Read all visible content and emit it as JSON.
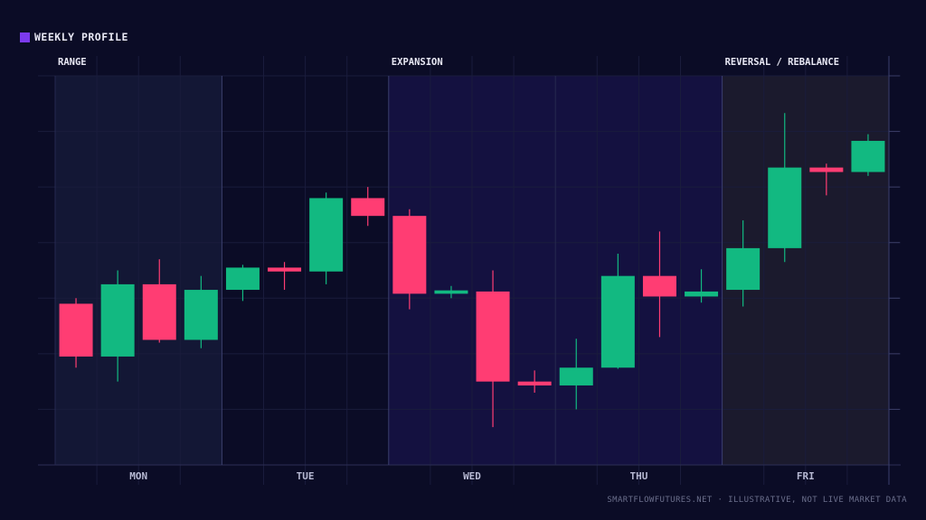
{
  "legend": {
    "label": "WEEKLY PROFILE",
    "color": "#7c3aed"
  },
  "footer": "SMARTFLOWFUTURES.NET · ILLUSTRATIVE, NOT LIVE MARKET DATA",
  "colors": {
    "background": "#0b0c26",
    "up": "#12b981",
    "down": "#ff3d73",
    "grid": "#1a1c3c",
    "range_shade": "#131735",
    "expansion_shade": "#141140",
    "reversal_shade": "#1b1a2d",
    "phase_label": "#e8e8f4",
    "day_label": "#b6b8d2"
  },
  "chart_data": {
    "type": "candlestick",
    "title": "",
    "xlabel": "",
    "ylabel": "",
    "ylim": [
      0,
      7
    ],
    "grid": true,
    "categories": [
      "MON",
      "TUE",
      "WED",
      "THU",
      "FRI"
    ],
    "phases": [
      {
        "label": "RANGE",
        "start": "MON",
        "end": "MON"
      },
      {
        "label": "EXPANSION",
        "start": "WED",
        "end": "THU"
      },
      {
        "label": "REVERSAL / REBALANCE",
        "start": "FRI",
        "end": "FRI"
      }
    ],
    "candles": [
      {
        "day": "MON",
        "open": 2.9,
        "high": 3.0,
        "low": 1.75,
        "close": 1.95
      },
      {
        "day": "MON",
        "open": 1.95,
        "high": 3.5,
        "low": 1.5,
        "close": 3.25
      },
      {
        "day": "MON",
        "open": 3.25,
        "high": 3.7,
        "low": 2.2,
        "close": 2.25
      },
      {
        "day": "MON",
        "open": 2.25,
        "high": 3.4,
        "low": 2.1,
        "close": 3.15
      },
      {
        "day": "TUE",
        "open": 3.15,
        "high": 3.6,
        "low": 2.95,
        "close": 3.55
      },
      {
        "day": "TUE",
        "open": 3.55,
        "high": 3.65,
        "low": 3.15,
        "close": 3.48
      },
      {
        "day": "TUE",
        "open": 3.48,
        "high": 4.9,
        "low": 3.25,
        "close": 4.8
      },
      {
        "day": "TUE",
        "open": 4.8,
        "high": 5.0,
        "low": 4.3,
        "close": 4.48
      },
      {
        "day": "WED",
        "open": 4.48,
        "high": 4.6,
        "low": 2.8,
        "close": 3.08
      },
      {
        "day": "WED",
        "open": 3.08,
        "high": 3.22,
        "low": 3.0,
        "close": 3.14
      },
      {
        "day": "WED",
        "open": 3.12,
        "high": 3.5,
        "low": 0.68,
        "close": 1.5
      },
      {
        "day": "WED",
        "open": 1.5,
        "high": 1.7,
        "low": 1.3,
        "close": 1.43
      },
      {
        "day": "THU",
        "open": 1.43,
        "high": 2.27,
        "low": 1.0,
        "close": 1.75
      },
      {
        "day": "THU",
        "open": 1.75,
        "high": 3.8,
        "low": 1.73,
        "close": 3.4
      },
      {
        "day": "THU",
        "open": 3.4,
        "high": 4.2,
        "low": 2.3,
        "close": 3.03
      },
      {
        "day": "THU",
        "open": 3.03,
        "high": 3.52,
        "low": 2.92,
        "close": 3.12
      },
      {
        "day": "FRI",
        "open": 3.15,
        "high": 4.4,
        "low": 2.85,
        "close": 3.9
      },
      {
        "day": "FRI",
        "open": 3.9,
        "high": 6.33,
        "low": 3.65,
        "close": 5.35
      },
      {
        "day": "FRI",
        "open": 5.35,
        "high": 5.42,
        "low": 4.85,
        "close": 5.27
      },
      {
        "day": "FRI",
        "open": 5.27,
        "high": 5.95,
        "low": 5.2,
        "close": 5.83
      }
    ]
  }
}
